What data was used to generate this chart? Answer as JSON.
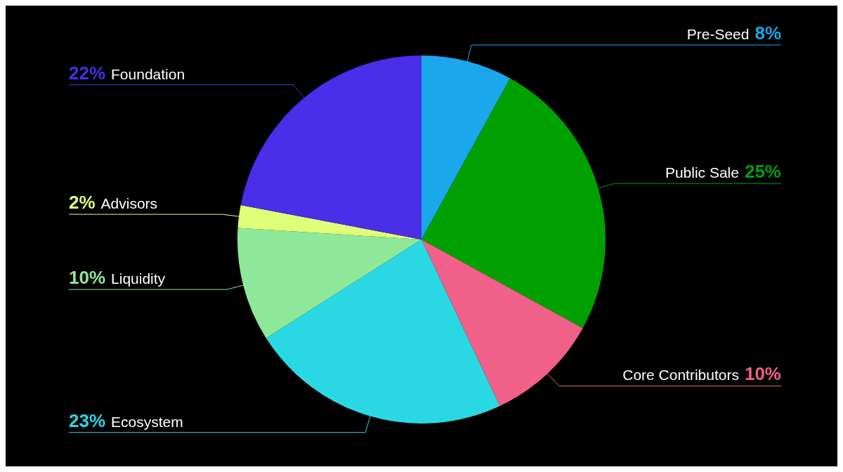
{
  "chart_data": {
    "type": "pie",
    "categories": [
      "Pre-Seed",
      "Public Sale",
      "Core Contributors",
      "Ecosystem",
      "Liquidity",
      "Advisors",
      "Foundation"
    ],
    "values": [
      8,
      25,
      10,
      23,
      10,
      2,
      22
    ],
    "colors": [
      "#1aa7ec",
      "#00a000",
      "#f06088",
      "#2ad8e4",
      "#8ee89a",
      "#e0ff78",
      "#4a2ee8"
    ],
    "value_labels": [
      "8%",
      "25%",
      "10%",
      "23%",
      "10%",
      "2%",
      "22%"
    ],
    "legend": false
  }
}
